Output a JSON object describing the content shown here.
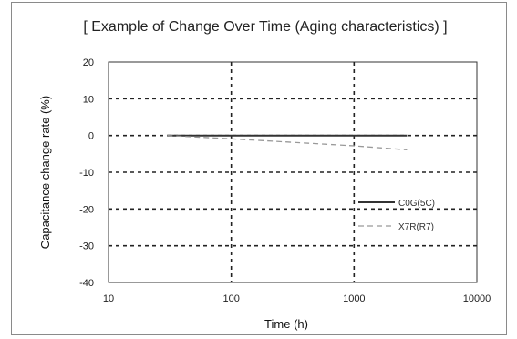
{
  "chart_data": {
    "type": "line",
    "title": "[ Example of Change Over Time (Aging characteristics) ]",
    "xlabel": "Time (h)",
    "ylabel": "Capacitance change rate (%)",
    "x_scale": "log",
    "xlim": [
      10,
      10000
    ],
    "ylim": [
      -40,
      20
    ],
    "x_ticks": [
      10,
      100,
      1000,
      10000
    ],
    "x_tick_labels": [
      "10",
      "100",
      "1000",
      "10000"
    ],
    "y_ticks": [
      20,
      10,
      0,
      -10,
      -20,
      -30,
      -40
    ],
    "y_tick_labels": [
      "20",
      "10",
      "0",
      "-10",
      "-20",
      "-30",
      "-40"
    ],
    "grid": true,
    "legend_position": "right",
    "series": [
      {
        "name": "C0G(5C)",
        "style": "solid",
        "color": "#333333",
        "points": [
          [
            30,
            0
          ],
          [
            100,
            0
          ],
          [
            1000,
            0
          ],
          [
            2700,
            0
          ]
        ]
      },
      {
        "name": "X7R(R7)",
        "style": "dashed",
        "color": "#999999",
        "points": [
          [
            30,
            0
          ],
          [
            100,
            -0.9
          ],
          [
            1000,
            -2.8
          ],
          [
            2700,
            -3.9
          ]
        ]
      }
    ]
  }
}
